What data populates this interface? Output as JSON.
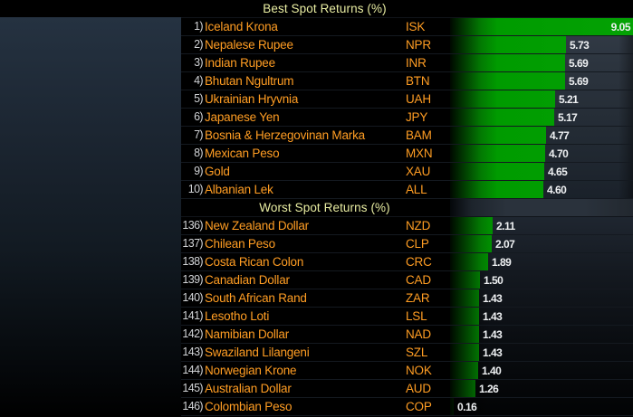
{
  "panel": {
    "description_colors": {
      "background": "#000000",
      "title_yellow": "#e9eda2",
      "name_orange": "#ff9d23",
      "rank_gray": "#d2d4d7",
      "value_white": "#eef0f2",
      "bar_green": "#009b00",
      "plot_slate": "#2b333d"
    }
  },
  "chart_data": [
    {
      "type": "bar",
      "orientation": "horizontal",
      "title": "Best Spot Returns (%)",
      "axis_max": 9.05,
      "bar_color": "#009b00",
      "rows": [
        {
          "rank": "1)",
          "name": "Iceland Krona",
          "code": "ISK",
          "value": 9.05
        },
        {
          "rank": "2)",
          "name": "Nepalese Rupee",
          "code": "NPR",
          "value": 5.73
        },
        {
          "rank": "3)",
          "name": "Indian Rupee",
          "code": "INR",
          "value": 5.69
        },
        {
          "rank": "4)",
          "name": "Bhutan Ngultrum",
          "code": "BTN",
          "value": 5.69
        },
        {
          "rank": "5)",
          "name": "Ukrainian Hryvnia",
          "code": "UAH",
          "value": 5.21
        },
        {
          "rank": "6)",
          "name": "Japanese Yen",
          "code": "JPY",
          "value": 5.17
        },
        {
          "rank": "7)",
          "name": "Bosnia & Herzegovinan Marka",
          "code": "BAM",
          "value": 4.77
        },
        {
          "rank": "8)",
          "name": "Mexican Peso",
          "code": "MXN",
          "value": 4.7
        },
        {
          "rank": "9)",
          "name": "Gold",
          "code": "XAU",
          "value": 4.65
        },
        {
          "rank": "10)",
          "name": "Albanian Lek",
          "code": "ALL",
          "value": 4.6
        }
      ]
    },
    {
      "type": "bar",
      "orientation": "horizontal",
      "title": "Worst Spot Returns (%)",
      "axis_max": 9.05,
      "bar_color": "#009b00",
      "rows": [
        {
          "rank": "136)",
          "name": "New Zealand Dollar",
          "code": "NZD",
          "value": 2.11
        },
        {
          "rank": "137)",
          "name": "Chilean Peso",
          "code": "CLP",
          "value": 2.07
        },
        {
          "rank": "138)",
          "name": "Costa Rican Colon",
          "code": "CRC",
          "value": 1.89
        },
        {
          "rank": "139)",
          "name": "Canadian Dollar",
          "code": "CAD",
          "value": 1.5
        },
        {
          "rank": "140)",
          "name": "South African Rand",
          "code": "ZAR",
          "value": 1.43
        },
        {
          "rank": "141)",
          "name": "Lesotho Loti",
          "code": "LSL",
          "value": 1.43
        },
        {
          "rank": "142)",
          "name": "Namibian Dollar",
          "code": "NAD",
          "value": 1.43
        },
        {
          "rank": "143)",
          "name": "Swaziland Lilangeni",
          "code": "SZL",
          "value": 1.43
        },
        {
          "rank": "144)",
          "name": "Norwegian Krone",
          "code": "NOK",
          "value": 1.4
        },
        {
          "rank": "145)",
          "name": "Australian Dollar",
          "code": "AUD",
          "value": 1.26
        },
        {
          "rank": "146)",
          "name": "Colombian Peso",
          "code": "COP",
          "value": 0.16
        }
      ]
    }
  ]
}
